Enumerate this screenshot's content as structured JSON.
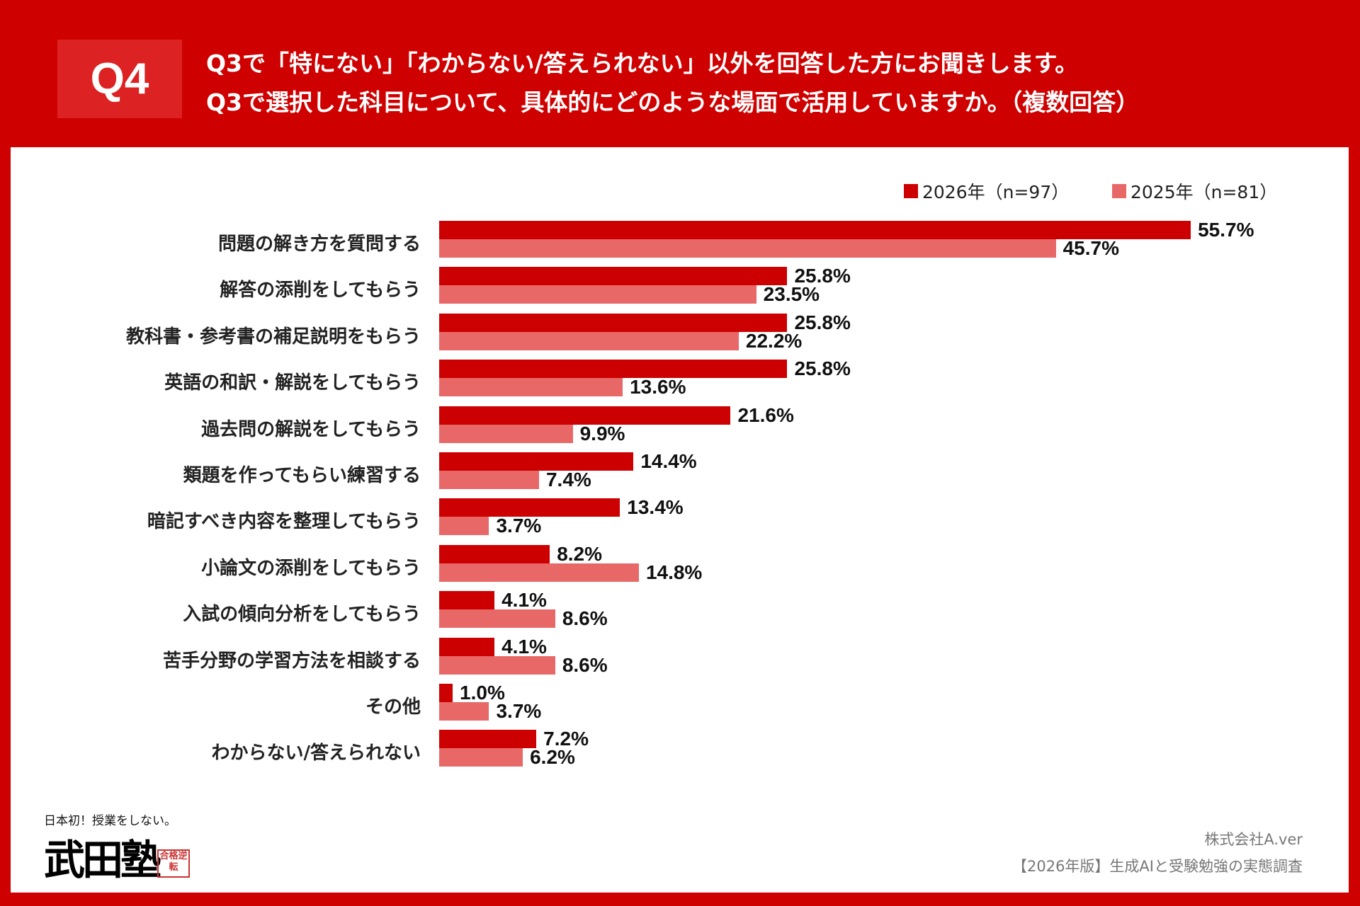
{
  "header": {
    "badge": "Q4",
    "line1": "Q3で「特にない」「わからない/答えられない」以外を回答した方にお聞きします。",
    "line2": "Q3で選択した科目について、具体的にどのような場面で活用していますか。（複数回答）"
  },
  "colors": {
    "background": "#cf0000",
    "series_2026": "#cc0000",
    "series_2025": "#e86868"
  },
  "chart_data": {
    "type": "bar",
    "orientation": "horizontal",
    "legend_position": "top-right",
    "grid": false,
    "unit": "%",
    "categories": [
      "問題の解き方を質問する",
      "解答の添削をしてもらう",
      "教科書・参考書の補足説明をもらう",
      "英語の和訳・解説をしてもらう",
      "過去問の解説をしてもらう",
      "類題を作ってもらい練習する",
      "暗記すべき内容を整理してもらう",
      "小論文の添削をしてもらう",
      "入試の傾向分析をしてもらう",
      "苦手分野の学習方法を相談する",
      "その他",
      "わからない/答えられない"
    ],
    "series": [
      {
        "name": "2026年（n=97）",
        "values": [
          55.7,
          25.8,
          25.8,
          25.8,
          21.6,
          14.4,
          13.4,
          8.2,
          4.1,
          4.1,
          1.0,
          7.2
        ]
      },
      {
        "name": "2025年（n=81）",
        "values": [
          45.7,
          23.5,
          22.2,
          13.6,
          9.9,
          7.4,
          3.7,
          14.8,
          8.6,
          8.6,
          3.7,
          6.2
        ]
      }
    ]
  },
  "logo": {
    "tagline": "日本初！授業をしない。",
    "name": "武田塾",
    "stamp": "合格逆転"
  },
  "footer": {
    "company": "株式会社A.ver",
    "survey": "【2026年版】生成AIと受験勉強の実態調査"
  }
}
